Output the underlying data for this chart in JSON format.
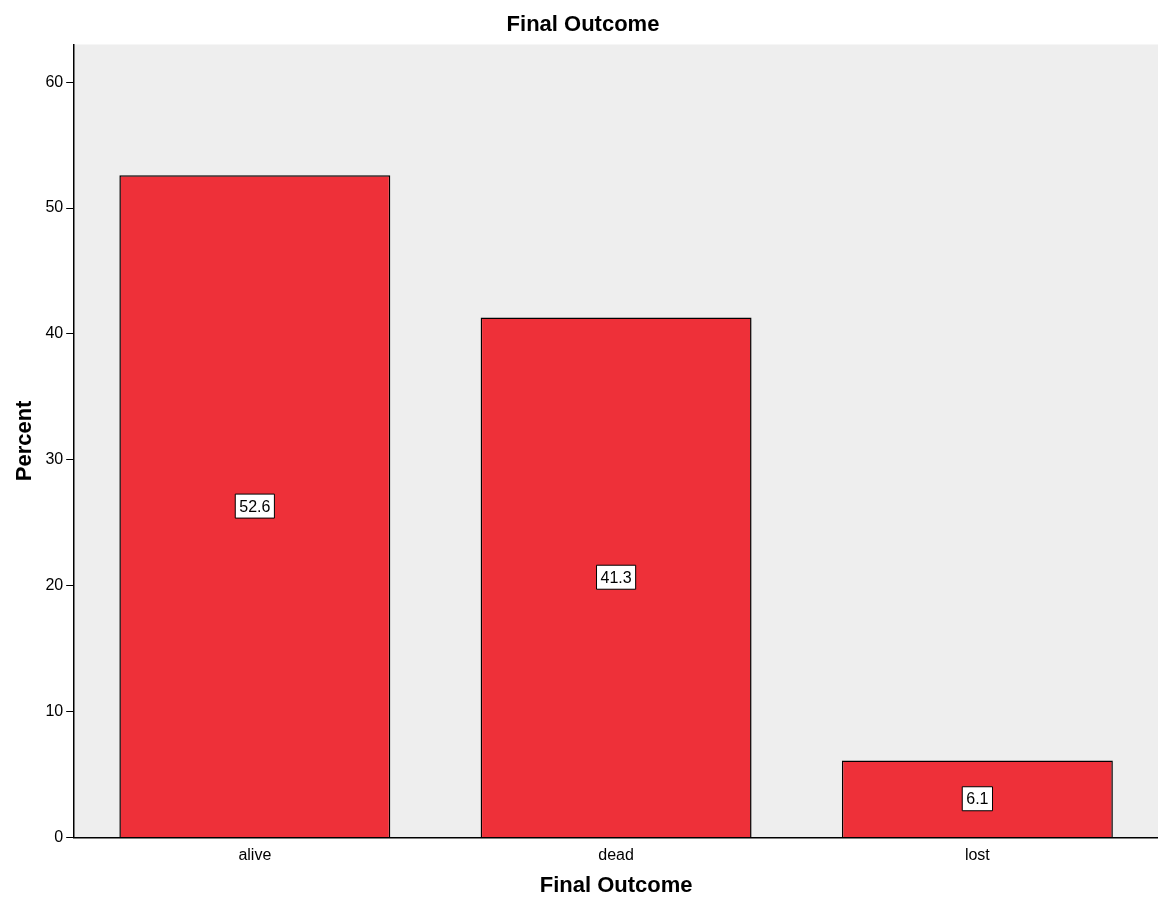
{
  "chart_data": {
    "type": "bar",
    "title": "Final Outcome",
    "xlabel": "Final Outcome",
    "ylabel": "Percent",
    "categories": [
      "alive",
      "dead",
      "lost"
    ],
    "values": [
      52.6,
      41.3,
      6.1
    ],
    "color": "#ee3039",
    "ylim": [
      0,
      63
    ],
    "yticks": [
      0,
      10,
      20,
      30,
      40,
      50,
      60
    ],
    "data_labels": true,
    "grid": false,
    "legend": false
  }
}
